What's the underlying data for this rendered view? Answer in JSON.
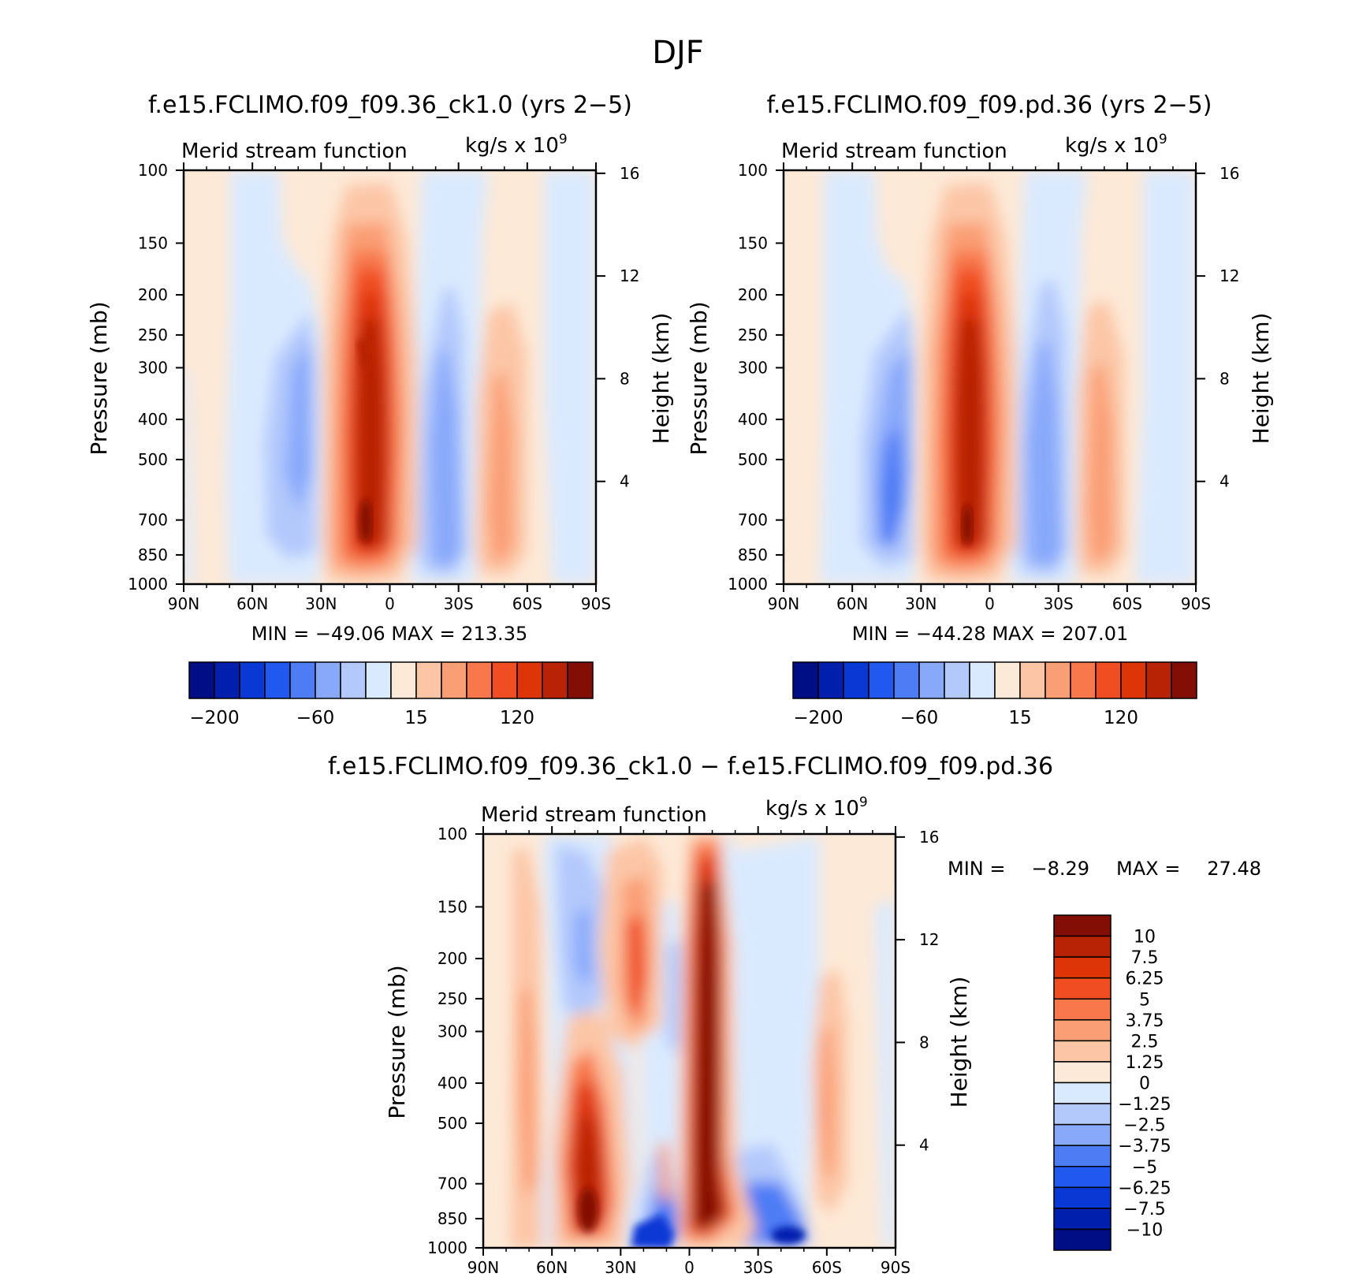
{
  "title": "DJF",
  "panels": {
    "left": {
      "case": "f.e15.FCLIMO.f09_f09.36_ck1.0 (yrs 2−5)",
      "var_label": "Merid stream function",
      "units": "kg/s x 10",
      "units_exp": "9",
      "minmax": "MIN = −49.06 MAX = 213.35",
      "min": -49.06,
      "max": 213.35
    },
    "right": {
      "case": "f.e15.FCLIMO.f09_f09.pd.36 (yrs 2−5)",
      "var_label": "Merid stream function",
      "units": "kg/s x 10",
      "units_exp": "9",
      "minmax": "MIN = −44.28 MAX = 207.01",
      "min": -44.28,
      "max": 207.01
    },
    "diff": {
      "case": "f.e15.FCLIMO.f09_f09.36_ck1.0 − f.e15.FCLIMO.f09_f09.pd.36",
      "var_label": "Merid stream function",
      "units": "kg/s x 10",
      "units_exp": "9",
      "min_label": "MIN =",
      "min_value": "−8.29",
      "max_label": "MAX =",
      "max_value": "27.48",
      "min": -8.29,
      "max": 27.48
    }
  },
  "colorbars": {
    "main_colors": [
      "#000e85",
      "#001fad",
      "#0a38d4",
      "#2058f0",
      "#4d7cf5",
      "#88a8fa",
      "#b3c9fc",
      "#daeafe",
      "#fde9d7",
      "#fcc6a6",
      "#fa9e75",
      "#f8784c",
      "#f04e22",
      "#de3508",
      "#b82205",
      "#830e05"
    ],
    "main_labels": [
      "−200",
      "−60",
      "15",
      "120"
    ],
    "diff_colors": [
      "#830e05",
      "#b82205",
      "#de3508",
      "#f04e22",
      "#f8784c",
      "#fa9e75",
      "#fcc6a6",
      "#fde9d7",
      "#daeafe",
      "#b3c9fc",
      "#88a8fa",
      "#4d7cf5",
      "#2058f0",
      "#0a38d4",
      "#001fad",
      "#000e85"
    ],
    "diff_labels": [
      "10",
      "7.5",
      "6.25",
      "5",
      "3.75",
      "2.5",
      "1.25",
      "0",
      "−1.25",
      "−2.5",
      "−3.75",
      "−5",
      "−6.25",
      "−7.5",
      "−10"
    ]
  },
  "chart_data": [
    {
      "type": "heatmap",
      "title": "f.e15.FCLIMO.f09_f09.36_ck1.0 (yrs 2−5)",
      "variable": "Merid stream function",
      "units": "kg/s x 10^9",
      "ylabel": "Pressure (mb)",
      "ylabel2": "Height (km)",
      "x_ticks": [
        "90N",
        "60N",
        "30N",
        "0",
        "30S",
        "60S",
        "90S"
      ],
      "y_ticks": [
        "100",
        "150",
        "200",
        "250",
        "300",
        "400",
        "500",
        "700",
        "850",
        "1000"
      ],
      "y2_ticks": [
        "16",
        "12",
        "8",
        "4"
      ],
      "cells": [
        {
          "lat": 10,
          "p": 600,
          "value": 213.35
        },
        {
          "lat": -25,
          "p": 500,
          "value": -49.06
        },
        {
          "lat": 38,
          "p": 450,
          "value": -25
        },
        {
          "lat": -47,
          "p": 500,
          "value": 40
        }
      ]
    },
    {
      "type": "heatmap",
      "title": "f.e15.FCLIMO.f09_f09.pd.36 (yrs 2−5)",
      "variable": "Merid stream function",
      "units": "kg/s x 10^9",
      "ylabel": "Pressure (mb)",
      "ylabel2": "Height (km)",
      "x_ticks": [
        "90N",
        "60N",
        "30N",
        "0",
        "30S",
        "60S",
        "90S"
      ],
      "y_ticks": [
        "100",
        "150",
        "200",
        "250",
        "300",
        "400",
        "500",
        "700",
        "850",
        "1000"
      ],
      "y2_ticks": [
        "16",
        "12",
        "8",
        "4"
      ],
      "cells": [
        {
          "lat": 10,
          "p": 600,
          "value": 207.01
        },
        {
          "lat": -25,
          "p": 500,
          "value": -44.28
        },
        {
          "lat": 38,
          "p": 450,
          "value": -30
        },
        {
          "lat": -47,
          "p": 500,
          "value": 40
        }
      ]
    },
    {
      "type": "heatmap",
      "title": "f.e15.FCLIMO.f09_f09.36_ck1.0 − f.e15.FCLIMO.f09_f09.pd.36",
      "variable": "Merid stream function",
      "units": "kg/s x 10^9",
      "ylabel": "Pressure (mb)",
      "ylabel2": "Height (km)",
      "x_ticks": [
        "90N",
        "60N",
        "30N",
        "0",
        "30S",
        "60S",
        "90S"
      ],
      "y_ticks": [
        "100",
        "150",
        "200",
        "250",
        "300",
        "400",
        "500",
        "700",
        "850",
        "1000"
      ],
      "y2_ticks": [
        "16",
        "12",
        "8",
        "4"
      ],
      "cells": [
        {
          "lat": -4,
          "p": 450,
          "value": 27.48
        },
        {
          "lat": 42,
          "p": 750,
          "value": 10
        },
        {
          "lat": 22,
          "p": 250,
          "value": 7
        },
        {
          "lat": 2,
          "p": 950,
          "value": -8.29
        },
        {
          "lat": -45,
          "p": 950,
          "value": -7
        }
      ]
    }
  ]
}
